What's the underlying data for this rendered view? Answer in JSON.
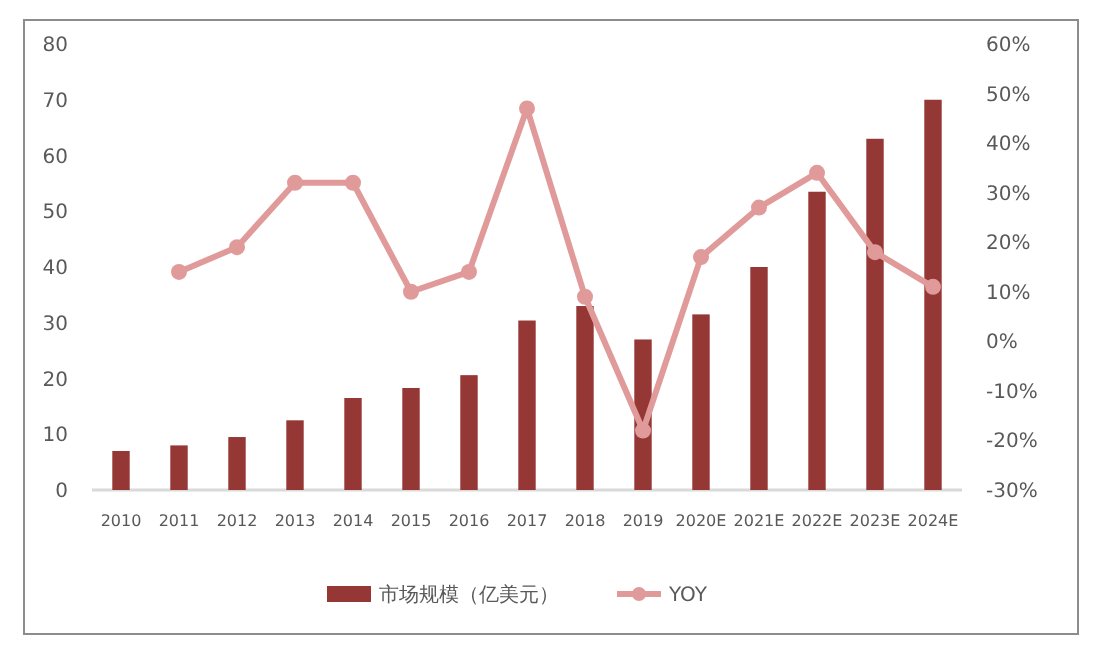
{
  "chart_data": {
    "type": "bar",
    "categories": [
      "2010",
      "2011",
      "2012",
      "2013",
      "2014",
      "2015",
      "2016",
      "2017",
      "2018",
      "2019",
      "2020E",
      "2021E",
      "2022E",
      "2023E",
      "2024E"
    ],
    "series": [
      {
        "name": "市场规模（亿美元）",
        "color": "#953735",
        "values": [
          7,
          8,
          9.5,
          12.5,
          16.5,
          18.3,
          20.6,
          30.4,
          33,
          27,
          31.5,
          40,
          53.5,
          63,
          70
        ]
      },
      {
        "name": "YOY",
        "type": "line",
        "axis": "y2",
        "color": "#e09a9a",
        "marker": "circle",
        "values": [
          null,
          14,
          19,
          32,
          32,
          10,
          14,
          47,
          9,
          -18,
          17,
          27,
          34,
          18,
          11
        ]
      }
    ],
    "ylim": [
      0,
      80
    ],
    "yticks": [
      0,
      10,
      20,
      30,
      40,
      50,
      60,
      70,
      80
    ],
    "y2lim": [
      -30,
      60
    ],
    "y2ticks": [
      {
        "value": -30,
        "label": "-30%"
      },
      {
        "value": -20,
        "label": "-20%"
      },
      {
        "value": -10,
        "label": "-10%"
      },
      {
        "value": 0,
        "label": "0%"
      },
      {
        "value": 10,
        "label": "10%"
      },
      {
        "value": 20,
        "label": "20%"
      },
      {
        "value": 30,
        "label": "30%"
      },
      {
        "value": 40,
        "label": "40%"
      },
      {
        "value": 50,
        "label": "50%"
      },
      {
        "value": 60,
        "label": "60%"
      }
    ],
    "legend": "bottom",
    "grid": false
  }
}
